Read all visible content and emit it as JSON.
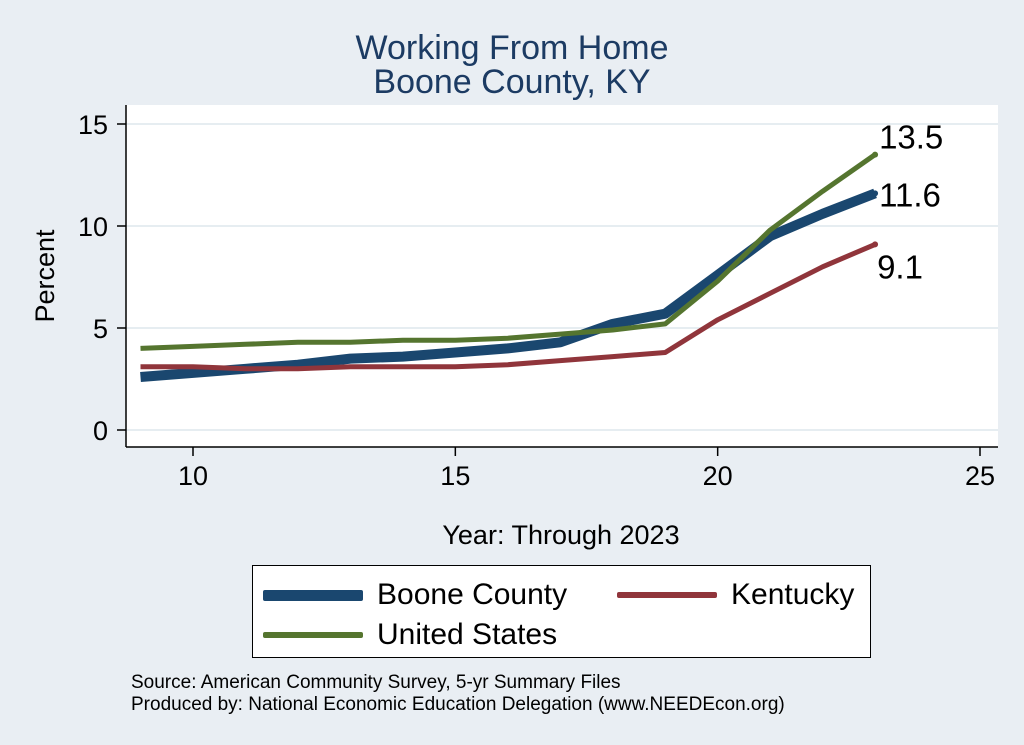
{
  "chart_data": {
    "type": "line",
    "title": "Working From Home",
    "subtitle": "Boone County, KY",
    "xlabel": "Year: Through 2023",
    "ylabel": "Percent",
    "xlim": [
      9,
      25
    ],
    "ylim": [
      0,
      15
    ],
    "xticks": [
      10,
      15,
      20,
      25
    ],
    "yticks": [
      0,
      5,
      10,
      15
    ],
    "grid": "horizontal",
    "legend_position": "bottom",
    "x": [
      9,
      10,
      11,
      12,
      13,
      14,
      15,
      16,
      17,
      18,
      19,
      20,
      21,
      22,
      23
    ],
    "series": [
      {
        "name": "Boone County",
        "color": "#1a476f",
        "values": [
          2.6,
          2.8,
          3.0,
          3.2,
          3.5,
          3.6,
          3.8,
          4.0,
          4.3,
          5.2,
          5.7,
          7.6,
          9.5,
          10.6,
          11.6
        ],
        "end_label": "11.6"
      },
      {
        "name": "Kentucky",
        "color": "#90353b",
        "values": [
          3.1,
          3.1,
          3.0,
          3.0,
          3.1,
          3.1,
          3.1,
          3.2,
          3.4,
          3.6,
          3.8,
          5.4,
          6.7,
          8.0,
          9.1
        ],
        "end_label": "9.1"
      },
      {
        "name": "United States",
        "color": "#55752f",
        "values": [
          4.0,
          4.1,
          4.2,
          4.3,
          4.3,
          4.4,
          4.4,
          4.5,
          4.7,
          4.9,
          5.2,
          7.3,
          9.8,
          11.7,
          13.5
        ],
        "end_label": "13.5"
      }
    ]
  },
  "source": {
    "line1": "Source: American Community Survey, 5-yr Summary Files",
    "line2": "Produced by: National Economic Education Delegation (www.NEEDEcon.org)"
  }
}
